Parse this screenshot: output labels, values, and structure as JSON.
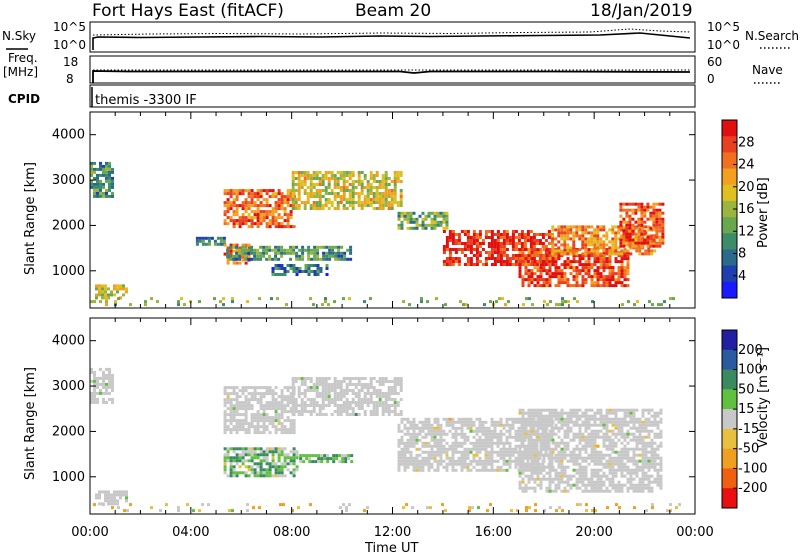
{
  "header": {
    "station": "Fort Hays East (fitACF)",
    "beam": "Beam 20",
    "date": "18/Jan/2019"
  },
  "summary_panels": {
    "nsky": {
      "label": "N.Sky",
      "ticks": [
        "10^5",
        "10^0"
      ]
    },
    "nsearch": {
      "label": "N.Search",
      "ticks": [
        "10^5",
        "10^0"
      ]
    },
    "freq": {
      "label_line1": "Freq.",
      "label_line2": "[MHz]",
      "ticks": [
        "18",
        "8"
      ]
    },
    "nave": {
      "label": "Nave",
      "ticks": [
        "60",
        "0"
      ]
    },
    "cpid": {
      "label": "CPID",
      "value": "themis -3300 IF"
    }
  },
  "colorbars": {
    "power": {
      "label": "Power [dB]",
      "ticks": [
        "28",
        "24",
        "20",
        "16",
        "12",
        "8",
        "4"
      ],
      "colors": [
        "#1a1aff",
        "#1e3fae",
        "#2a6a8a",
        "#3c8c6a",
        "#6aa850",
        "#9bb540",
        "#e0c020",
        "#f3a020",
        "#f07020",
        "#e84020",
        "#e01010"
      ]
    },
    "velocity": {
      "label": "Velocity [m s⁻¹]",
      "ticks": [
        "200",
        "100",
        "50",
        "15",
        "-15",
        "-50",
        "-100",
        "-200"
      ],
      "colors": [
        "#2020a0",
        "#2a5aa0",
        "#3a8a60",
        "#60c040",
        "#c8c8c8",
        "#e8c040",
        "#f0a020",
        "#f06010",
        "#e81010"
      ]
    }
  },
  "axes": {
    "xlabel": "Time UT",
    "xticks": [
      "00:00",
      "04:00",
      "08:00",
      "12:00",
      "16:00",
      "20:00",
      "00:00"
    ],
    "ylabel": "Slant Range [km]",
    "yticks": [
      "1000",
      "2000",
      "3000",
      "4000"
    ]
  },
  "chart_data": [
    {
      "type": "heatmap",
      "title": "",
      "xlabel": "",
      "ylabel": "Slant Range [km]",
      "xlim": [
        0,
        24
      ],
      "ylim": [
        180,
        4500
      ],
      "value_label": "Power [dB]",
      "vlim": [
        0,
        30
      ],
      "blobs": [
        {
          "t0": 0.0,
          "t1": 1.0,
          "r0": 2600,
          "r1": 3400,
          "v": 10
        },
        {
          "t0": 0.2,
          "t1": 1.6,
          "r0": 350,
          "r1": 700,
          "v": 16
        },
        {
          "t0": 4.2,
          "t1": 5.4,
          "r0": 1500,
          "r1": 1750,
          "v": 9
        },
        {
          "t0": 5.3,
          "t1": 6.4,
          "r0": 1100,
          "r1": 1600,
          "v": 24
        },
        {
          "t0": 5.4,
          "t1": 10.5,
          "r0": 1200,
          "r1": 1550,
          "v": 10
        },
        {
          "t0": 5.3,
          "t1": 8.2,
          "r0": 1900,
          "r1": 2800,
          "v": 24
        },
        {
          "t0": 8.0,
          "t1": 12.5,
          "r0": 2300,
          "r1": 3200,
          "v": 17
        },
        {
          "t0": 7.2,
          "t1": 9.5,
          "r0": 850,
          "r1": 1150,
          "v": 7
        },
        {
          "t0": 12.2,
          "t1": 14.3,
          "r0": 1900,
          "r1": 2300,
          "v": 12
        },
        {
          "t0": 14.0,
          "t1": 18.5,
          "r0": 1100,
          "r1": 1900,
          "v": 27
        },
        {
          "t0": 17.0,
          "t1": 21.5,
          "r0": 600,
          "r1": 1500,
          "v": 26
        },
        {
          "t0": 18.3,
          "t1": 22.5,
          "r0": 1300,
          "r1": 2000,
          "v": 22
        },
        {
          "t0": 21.0,
          "t1": 22.8,
          "r0": 1500,
          "r1": 2500,
          "v": 25
        },
        {
          "t0": 0.0,
          "t1": 23.8,
          "r0": 180,
          "r1": 420,
          "v": 14
        }
      ]
    },
    {
      "type": "heatmap",
      "title": "",
      "xlabel": "Time UT",
      "ylabel": "Slant Range [km]",
      "xlim": [
        0,
        24
      ],
      "ylim": [
        180,
        4500
      ],
      "value_label": "Velocity [m s⁻¹]",
      "vlim": [
        -200,
        200
      ],
      "blobs": [
        {
          "t0": 0.0,
          "t1": 1.0,
          "r0": 2600,
          "r1": 3400,
          "v": 0
        },
        {
          "t0": 0.2,
          "t1": 1.6,
          "r0": 350,
          "r1": 700,
          "v": 0
        },
        {
          "t0": 5.3,
          "t1": 8.2,
          "r0": 1900,
          "r1": 3000,
          "v": 0
        },
        {
          "t0": 8.0,
          "t1": 12.5,
          "r0": 2300,
          "r1": 3200,
          "v": 0
        },
        {
          "t0": 5.3,
          "t1": 8.3,
          "r0": 950,
          "r1": 1650,
          "v": 40
        },
        {
          "t0": 8.3,
          "t1": 10.5,
          "r0": 1250,
          "r1": 1500,
          "v": 40
        },
        {
          "t0": 12.2,
          "t1": 18.5,
          "r0": 1100,
          "r1": 2300,
          "v": 0
        },
        {
          "t0": 17.0,
          "t1": 22.8,
          "r0": 600,
          "r1": 2500,
          "v": 0
        },
        {
          "t0": 0.0,
          "t1": 23.8,
          "r0": 180,
          "r1": 420,
          "v": -40
        }
      ]
    }
  ]
}
